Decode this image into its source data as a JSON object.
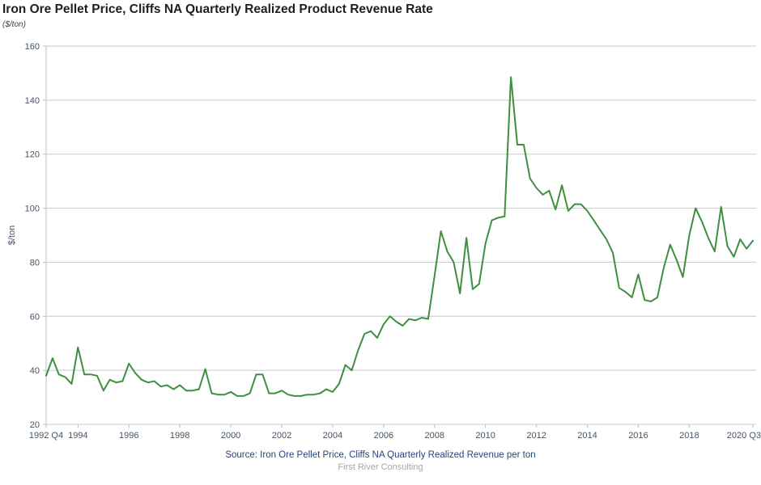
{
  "title": "Iron Ore Pellet Price, Cliffs NA Quarterly Realized Product Revenue Rate",
  "subtitle": "($/ton)",
  "footer": {
    "source": "Source: Iron Ore Pellet Price, Cliffs NA Quarterly Realized Revenue per ton",
    "consultancy": "First River Consulting"
  },
  "colors": {
    "line": "#3f8f3f",
    "grid": "#c9c9c9",
    "axis": "#bfbfbf",
    "tick_text": "#44546a",
    "title_text": "#1f1f1f",
    "source_text": "#264478",
    "consultancy_text": "#a6a6a6"
  },
  "chart_data": {
    "type": "line",
    "title": "Iron Ore Pellet Price, Cliffs NA Quarterly Realized Product Revenue Rate",
    "subtitle": "($/ton)",
    "xlabel": "",
    "ylabel": "$/ton",
    "ylim": [
      20,
      160
    ],
    "ytick_step": 20,
    "ytick_labels": [
      "20",
      "40",
      "60",
      "80",
      "100",
      "120",
      "140",
      "160"
    ],
    "grid": "horizontal",
    "legend": "none",
    "frequency": "quarterly",
    "x_start": "1992 Q4",
    "x_end": "2020 Q3",
    "xticks": [
      {
        "label": "1992 Q4",
        "index": 0
      },
      {
        "label": "1994",
        "index": 5
      },
      {
        "label": "1996",
        "index": 13
      },
      {
        "label": "1998",
        "index": 21
      },
      {
        "label": "2000",
        "index": 29
      },
      {
        "label": "2002",
        "index": 37
      },
      {
        "label": "2004",
        "index": 45
      },
      {
        "label": "2006",
        "index": 53
      },
      {
        "label": "2008",
        "index": 61
      },
      {
        "label": "2010",
        "index": 69
      },
      {
        "label": "2012",
        "index": 77
      },
      {
        "label": "2014",
        "index": 85
      },
      {
        "label": "2016",
        "index": 93
      },
      {
        "label": "2018",
        "index": 101
      },
      {
        "label": "2020 Q3",
        "index": 111
      }
    ],
    "quarters": [
      "1992 Q4",
      "1993 Q1",
      "1993 Q2",
      "1993 Q3",
      "1993 Q4",
      "1994 Q1",
      "1994 Q2",
      "1994 Q3",
      "1994 Q4",
      "1995 Q1",
      "1995 Q2",
      "1995 Q3",
      "1995 Q4",
      "1996 Q1",
      "1996 Q2",
      "1996 Q3",
      "1996 Q4",
      "1997 Q1",
      "1997 Q2",
      "1997 Q3",
      "1997 Q4",
      "1998 Q1",
      "1998 Q2",
      "1998 Q3",
      "1998 Q4",
      "1999 Q1",
      "1999 Q2",
      "1999 Q3",
      "1999 Q4",
      "2000 Q1",
      "2000 Q2",
      "2000 Q3",
      "2000 Q4",
      "2001 Q1",
      "2001 Q2",
      "2001 Q3",
      "2001 Q4",
      "2002 Q1",
      "2002 Q2",
      "2002 Q3",
      "2002 Q4",
      "2003 Q1",
      "2003 Q2",
      "2003 Q3",
      "2003 Q4",
      "2004 Q1",
      "2004 Q2",
      "2004 Q3",
      "2004 Q4",
      "2005 Q1",
      "2005 Q2",
      "2005 Q3",
      "2005 Q4",
      "2006 Q1",
      "2006 Q2",
      "2006 Q3",
      "2006 Q4",
      "2007 Q1",
      "2007 Q2",
      "2007 Q3",
      "2007 Q4",
      "2008 Q1",
      "2008 Q2",
      "2008 Q3",
      "2008 Q4",
      "2009 Q1",
      "2009 Q2",
      "2009 Q3",
      "2009 Q4",
      "2010 Q1",
      "2010 Q2",
      "2010 Q3",
      "2010 Q4",
      "2011 Q1",
      "2011 Q2",
      "2011 Q3",
      "2011 Q4",
      "2012 Q1",
      "2012 Q2",
      "2012 Q3",
      "2012 Q4",
      "2013 Q1",
      "2013 Q2",
      "2013 Q3",
      "2013 Q4",
      "2014 Q1",
      "2014 Q2",
      "2014 Q3",
      "2014 Q4",
      "2015 Q1",
      "2015 Q2",
      "2015 Q3",
      "2015 Q4",
      "2016 Q1",
      "2016 Q2",
      "2016 Q3",
      "2016 Q4",
      "2017 Q1",
      "2017 Q2",
      "2017 Q3",
      "2017 Q4",
      "2018 Q1",
      "2018 Q2",
      "2018 Q3",
      "2018 Q4",
      "2019 Q1",
      "2019 Q2",
      "2019 Q3",
      "2019 Q4",
      "2020 Q1",
      "2020 Q2",
      "2020 Q3"
    ],
    "values": [
      38,
      44.5,
      38.5,
      37.5,
      35,
      48.5,
      38.5,
      38.5,
      38,
      32.5,
      36.5,
      35.5,
      36,
      42.5,
      39,
      36.5,
      35.5,
      36,
      34,
      34.5,
      33,
      34.5,
      32.5,
      32.5,
      33,
      40.5,
      31.5,
      31,
      31,
      32,
      30.5,
      30.5,
      31.5,
      38.5,
      38.5,
      31.5,
      31.5,
      32.5,
      31,
      30.5,
      30.5,
      31,
      31,
      31.5,
      33,
      32,
      35,
      42,
      40,
      47.5,
      53.5,
      54.5,
      52,
      57,
      60,
      58,
      56.5,
      59,
      58.5,
      59.5,
      59,
      75,
      91.5,
      84,
      80,
      68.5,
      89,
      70,
      72,
      87,
      95.5,
      96.5,
      97,
      148.5,
      123.5,
      123.5,
      111,
      107.5,
      105,
      106.5,
      99.5,
      108.5,
      99,
      101.5,
      101.5,
      99,
      95.5,
      92,
      88.5,
      83.5,
      70.5,
      69,
      67,
      75.5,
      66,
      65.5,
      67,
      78,
      86.5,
      81,
      74.5,
      90,
      100,
      95,
      89,
      84,
      100.5,
      86,
      82,
      88.5,
      85,
      88
    ],
    "line_color": "#3f8f3f",
    "line_width": 2
  }
}
